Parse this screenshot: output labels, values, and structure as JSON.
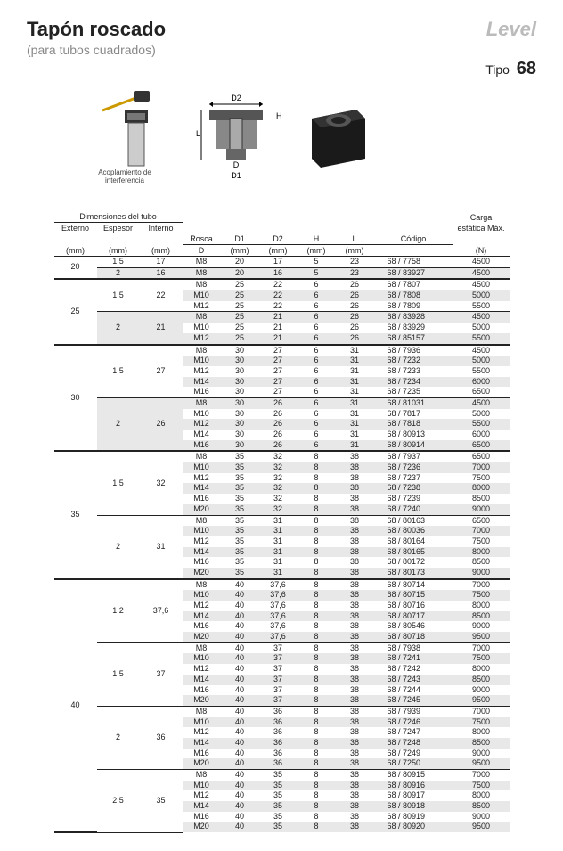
{
  "title": "Tapón roscado",
  "subtitle": "(para tubos cuadrados)",
  "logo": "Level",
  "tipo_label": "Tipo",
  "tipo_value": "68",
  "coupling_label": "Acoplamiento de interferencia",
  "dim_labels": {
    "D2": "D2",
    "D1": "D1",
    "L": "L",
    "H": "H",
    "D": "D"
  },
  "headers": {
    "tube_group": "Dimensiones del tubo",
    "externo": "Externo",
    "externo_u": "(mm)",
    "espesor": "Espesor",
    "espesor_u": "(mm)",
    "interno": "Interno",
    "interno_u": "(mm)",
    "rosca": "Rosca",
    "rosca_u": "D",
    "d1": "D1",
    "d1_u": "(mm)",
    "d2": "D2",
    "d2_u": "(mm)",
    "h": "H",
    "h_u": "(mm)",
    "l": "L",
    "l_u": "(mm)",
    "codigo": "Código",
    "carga": "Carga",
    "carga2": "estática Máx.",
    "carga_u": "(N)"
  },
  "rows": [
    {
      "ext": "20",
      "ext_rs": 2,
      "esp": "1,5",
      "esp_rs": 1,
      "int": "17",
      "int_rs": 1,
      "ros": "M8",
      "d1": "20",
      "d2": "17",
      "h": "5",
      "l": "23",
      "cod": "68 / 7758",
      "car": "4500",
      "shade": 0,
      "bi": 1,
      "be": 0
    },
    {
      "esp": "2",
      "esp_rs": 1,
      "int": "16",
      "int_rs": 1,
      "ros": "M8",
      "d1": "20",
      "d2": "16",
      "h": "5",
      "l": "23",
      "cod": "68 / 83927",
      "car": "4500",
      "shade": 1,
      "bi": 0,
      "be": 2
    },
    {
      "ext": "25",
      "ext_rs": 6,
      "esp": "1,5",
      "esp_rs": 3,
      "int": "22",
      "int_rs": 3,
      "ros": "M8",
      "d1": "25",
      "d2": "22",
      "h": "6",
      "l": "26",
      "cod": "68 / 7807",
      "car": "4500",
      "shade": 0,
      "bi": 0,
      "be": 0
    },
    {
      "ros": "M10",
      "d1": "25",
      "d2": "22",
      "h": "6",
      "l": "26",
      "cod": "68 / 7808",
      "car": "5000",
      "shade": 1,
      "bi": 0,
      "be": 0
    },
    {
      "ros": "M12",
      "d1": "25",
      "d2": "22",
      "h": "6",
      "l": "26",
      "cod": "68 / 7809",
      "car": "5500",
      "shade": 0,
      "bi": 1,
      "be": 0
    },
    {
      "esp": "2",
      "esp_rs": 3,
      "int": "21",
      "int_rs": 3,
      "ros": "M8",
      "d1": "25",
      "d2": "21",
      "h": "6",
      "l": "26",
      "cod": "68 / 83928",
      "car": "4500",
      "shade": 1,
      "bi": 0,
      "be": 0
    },
    {
      "ros": "M10",
      "d1": "25",
      "d2": "21",
      "h": "6",
      "l": "26",
      "cod": "68 / 83929",
      "car": "5000",
      "shade": 0,
      "bi": 0,
      "be": 0
    },
    {
      "ros": "M12",
      "d1": "25",
      "d2": "21",
      "h": "6",
      "l": "26",
      "cod": "68 / 85157",
      "car": "5500",
      "shade": 1,
      "bi": 0,
      "be": 2
    },
    {
      "ext": "30",
      "ext_rs": 10,
      "esp": "1,5",
      "esp_rs": 5,
      "int": "27",
      "int_rs": 5,
      "ros": "M8",
      "d1": "30",
      "d2": "27",
      "h": "6",
      "l": "31",
      "cod": "68 / 7936",
      "car": "4500",
      "shade": 0,
      "bi": 0,
      "be": 0
    },
    {
      "ros": "M10",
      "d1": "30",
      "d2": "27",
      "h": "6",
      "l": "31",
      "cod": "68 / 7232",
      "car": "5000",
      "shade": 1,
      "bi": 0,
      "be": 0
    },
    {
      "ros": "M12",
      "d1": "30",
      "d2": "27",
      "h": "6",
      "l": "31",
      "cod": "68 / 7233",
      "car": "5500",
      "shade": 0,
      "bi": 0,
      "be": 0
    },
    {
      "ros": "M14",
      "d1": "30",
      "d2": "27",
      "h": "6",
      "l": "31",
      "cod": "68 / 7234",
      "car": "6000",
      "shade": 1,
      "bi": 0,
      "be": 0
    },
    {
      "ros": "M16",
      "d1": "30",
      "d2": "27",
      "h": "6",
      "l": "31",
      "cod": "68 / 7235",
      "car": "6500",
      "shade": 0,
      "bi": 1,
      "be": 0
    },
    {
      "esp": "2",
      "esp_rs": 5,
      "int": "26",
      "int_rs": 5,
      "ros": "M8",
      "d1": "30",
      "d2": "26",
      "h": "6",
      "l": "31",
      "cod": "68 / 81031",
      "car": "4500",
      "shade": 1,
      "bi": 0,
      "be": 0
    },
    {
      "ros": "M10",
      "d1": "30",
      "d2": "26",
      "h": "6",
      "l": "31",
      "cod": "68 / 7817",
      "car": "5000",
      "shade": 0,
      "bi": 0,
      "be": 0
    },
    {
      "ros": "M12",
      "d1": "30",
      "d2": "26",
      "h": "6",
      "l": "31",
      "cod": "68 / 7818",
      "car": "5500",
      "shade": 1,
      "bi": 0,
      "be": 0
    },
    {
      "ros": "M14",
      "d1": "30",
      "d2": "26",
      "h": "6",
      "l": "31",
      "cod": "68 / 80913",
      "car": "6000",
      "shade": 0,
      "bi": 0,
      "be": 0
    },
    {
      "ros": "M16",
      "d1": "30",
      "d2": "26",
      "h": "6",
      "l": "31",
      "cod": "68 / 80914",
      "car": "6500",
      "shade": 1,
      "bi": 0,
      "be": 2
    },
    {
      "ext": "35",
      "ext_rs": 12,
      "esp": "1,5",
      "esp_rs": 6,
      "int": "32",
      "int_rs": 6,
      "ros": "M8",
      "d1": "35",
      "d2": "32",
      "h": "8",
      "l": "38",
      "cod": "68 / 7937",
      "car": "6500",
      "shade": 0,
      "bi": 0,
      "be": 0
    },
    {
      "ros": "M10",
      "d1": "35",
      "d2": "32",
      "h": "8",
      "l": "38",
      "cod": "68 / 7236",
      "car": "7000",
      "shade": 1,
      "bi": 0,
      "be": 0
    },
    {
      "ros": "M12",
      "d1": "35",
      "d2": "32",
      "h": "8",
      "l": "38",
      "cod": "68 / 7237",
      "car": "7500",
      "shade": 0,
      "bi": 0,
      "be": 0
    },
    {
      "ros": "M14",
      "d1": "35",
      "d2": "32",
      "h": "8",
      "l": "38",
      "cod": "68 / 7238",
      "car": "8000",
      "shade": 1,
      "bi": 0,
      "be": 0
    },
    {
      "ros": "M16",
      "d1": "35",
      "d2": "32",
      "h": "8",
      "l": "38",
      "cod": "68 / 7239",
      "car": "8500",
      "shade": 0,
      "bi": 0,
      "be": 0
    },
    {
      "ros": "M20",
      "d1": "35",
      "d2": "32",
      "h": "8",
      "l": "38",
      "cod": "68 / 7240",
      "car": "9000",
      "shade": 1,
      "bi": 1,
      "be": 0
    },
    {
      "esp": "2",
      "esp_rs": 6,
      "int": "31",
      "int_rs": 6,
      "ros": "M8",
      "d1": "35",
      "d2": "31",
      "h": "8",
      "l": "38",
      "cod": "68 / 80163",
      "car": "6500",
      "shade": 0,
      "bi": 0,
      "be": 0
    },
    {
      "ros": "M10",
      "d1": "35",
      "d2": "31",
      "h": "8",
      "l": "38",
      "cod": "68 / 80036",
      "car": "7000",
      "shade": 1,
      "bi": 0,
      "be": 0
    },
    {
      "ros": "M12",
      "d1": "35",
      "d2": "31",
      "h": "8",
      "l": "38",
      "cod": "68 / 80164",
      "car": "7500",
      "shade": 0,
      "bi": 0,
      "be": 0
    },
    {
      "ros": "M14",
      "d1": "35",
      "d2": "31",
      "h": "8",
      "l": "38",
      "cod": "68 / 80165",
      "car": "8000",
      "shade": 1,
      "bi": 0,
      "be": 0
    },
    {
      "ros": "M16",
      "d1": "35",
      "d2": "31",
      "h": "8",
      "l": "38",
      "cod": "68 / 80172",
      "car": "8500",
      "shade": 0,
      "bi": 0,
      "be": 0
    },
    {
      "ros": "M20",
      "d1": "35",
      "d2": "31",
      "h": "8",
      "l": "38",
      "cod": "68 / 80173",
      "car": "9000",
      "shade": 1,
      "bi": 0,
      "be": 2
    },
    {
      "ext": "40",
      "ext_rs": 24,
      "esp": "1,2",
      "esp_rs": 6,
      "int": "37,6",
      "int_rs": 6,
      "ros": "M8",
      "d1": "40",
      "d2": "37,6",
      "h": "8",
      "l": "38",
      "cod": "68 / 80714",
      "car": "7000",
      "shade": 0,
      "bi": 0,
      "be": 0
    },
    {
      "ros": "M10",
      "d1": "40",
      "d2": "37,6",
      "h": "8",
      "l": "38",
      "cod": "68 / 80715",
      "car": "7500",
      "shade": 1,
      "bi": 0,
      "be": 0
    },
    {
      "ros": "M12",
      "d1": "40",
      "d2": "37,6",
      "h": "8",
      "l": "38",
      "cod": "68 / 80716",
      "car": "8000",
      "shade": 0,
      "bi": 0,
      "be": 0
    },
    {
      "ros": "M14",
      "d1": "40",
      "d2": "37,6",
      "h": "8",
      "l": "38",
      "cod": "68 / 80717",
      "car": "8500",
      "shade": 1,
      "bi": 0,
      "be": 0
    },
    {
      "ros": "M16",
      "d1": "40",
      "d2": "37,6",
      "h": "8",
      "l": "38",
      "cod": "68 / 80546",
      "car": "9000",
      "shade": 0,
      "bi": 0,
      "be": 0
    },
    {
      "ros": "M20",
      "d1": "40",
      "d2": "37,6",
      "h": "8",
      "l": "38",
      "cod": "68 / 80718",
      "car": "9500",
      "shade": 1,
      "bi": 1,
      "be": 0
    },
    {
      "esp": "1,5",
      "esp_rs": 6,
      "int": "37",
      "int_rs": 6,
      "ros": "M8",
      "d1": "40",
      "d2": "37",
      "h": "8",
      "l": "38",
      "cod": "68 / 7938",
      "car": "7000",
      "shade": 0,
      "bi": 0,
      "be": 0
    },
    {
      "ros": "M10",
      "d1": "40",
      "d2": "37",
      "h": "8",
      "l": "38",
      "cod": "68 / 7241",
      "car": "7500",
      "shade": 1,
      "bi": 0,
      "be": 0
    },
    {
      "ros": "M12",
      "d1": "40",
      "d2": "37",
      "h": "8",
      "l": "38",
      "cod": "68 / 7242",
      "car": "8000",
      "shade": 0,
      "bi": 0,
      "be": 0
    },
    {
      "ros": "M14",
      "d1": "40",
      "d2": "37",
      "h": "8",
      "l": "38",
      "cod": "68 / 7243",
      "car": "8500",
      "shade": 1,
      "bi": 0,
      "be": 0
    },
    {
      "ros": "M16",
      "d1": "40",
      "d2": "37",
      "h": "8",
      "l": "38",
      "cod": "68 / 7244",
      "car": "9000",
      "shade": 0,
      "bi": 0,
      "be": 0
    },
    {
      "ros": "M20",
      "d1": "40",
      "d2": "37",
      "h": "8",
      "l": "38",
      "cod": "68 / 7245",
      "car": "9500",
      "shade": 1,
      "bi": 1,
      "be": 0
    },
    {
      "esp": "2",
      "esp_rs": 6,
      "int": "36",
      "int_rs": 6,
      "ros": "M8",
      "d1": "40",
      "d2": "36",
      "h": "8",
      "l": "38",
      "cod": "68 / 7939",
      "car": "7000",
      "shade": 0,
      "bi": 0,
      "be": 0
    },
    {
      "ros": "M10",
      "d1": "40",
      "d2": "36",
      "h": "8",
      "l": "38",
      "cod": "68 / 7246",
      "car": "7500",
      "shade": 1,
      "bi": 0,
      "be": 0
    },
    {
      "ros": "M12",
      "d1": "40",
      "d2": "36",
      "h": "8",
      "l": "38",
      "cod": "68 / 7247",
      "car": "8000",
      "shade": 0,
      "bi": 0,
      "be": 0
    },
    {
      "ros": "M14",
      "d1": "40",
      "d2": "36",
      "h": "8",
      "l": "38",
      "cod": "68 / 7248",
      "car": "8500",
      "shade": 1,
      "bi": 0,
      "be": 0
    },
    {
      "ros": "M16",
      "d1": "40",
      "d2": "36",
      "h": "8",
      "l": "38",
      "cod": "68 / 7249",
      "car": "9000",
      "shade": 0,
      "bi": 0,
      "be": 0
    },
    {
      "ros": "M20",
      "d1": "40",
      "d2": "36",
      "h": "8",
      "l": "38",
      "cod": "68 / 7250",
      "car": "9500",
      "shade": 1,
      "bi": 1,
      "be": 0
    },
    {
      "esp": "2,5",
      "esp_rs": 6,
      "int": "35",
      "int_rs": 6,
      "ros": "M8",
      "d1": "40",
      "d2": "35",
      "h": "8",
      "l": "38",
      "cod": "68 / 80915",
      "car": "7000",
      "shade": 0,
      "bi": 0,
      "be": 0
    },
    {
      "ros": "M10",
      "d1": "40",
      "d2": "35",
      "h": "8",
      "l": "38",
      "cod": "68 / 80916",
      "car": "7500",
      "shade": 1,
      "bi": 0,
      "be": 0
    },
    {
      "ros": "M12",
      "d1": "40",
      "d2": "35",
      "h": "8",
      "l": "38",
      "cod": "68 / 80917",
      "car": "8000",
      "shade": 0,
      "bi": 0,
      "be": 0
    },
    {
      "ros": "M14",
      "d1": "40",
      "d2": "35",
      "h": "8",
      "l": "38",
      "cod": "68 / 80918",
      "car": "8500",
      "shade": 1,
      "bi": 0,
      "be": 0
    },
    {
      "ros": "M16",
      "d1": "40",
      "d2": "35",
      "h": "8",
      "l": "38",
      "cod": "68 / 80919",
      "car": "9000",
      "shade": 0,
      "bi": 0,
      "be": 0
    },
    {
      "ros": "M20",
      "d1": "40",
      "d2": "35",
      "h": "8",
      "l": "38",
      "cod": "68 / 80920",
      "car": "9500",
      "shade": 1,
      "bi": 0,
      "be": 0
    }
  ]
}
